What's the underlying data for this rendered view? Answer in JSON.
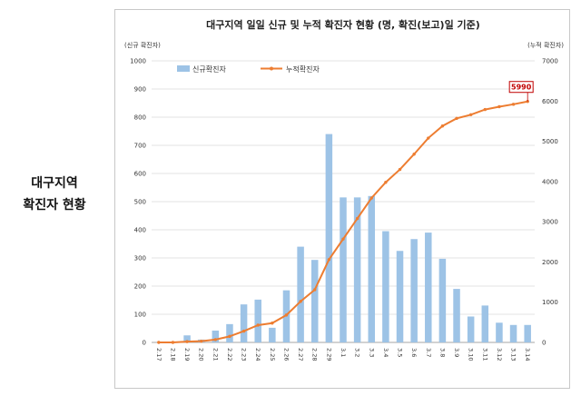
{
  "side_title": [
    "대구지역",
    "확진자 현황"
  ],
  "chart_data": {
    "type": "bar+line",
    "title": "대구지역 일일 신규 및 누적 확진자 현황 (명, 확진(보고)일 기준)",
    "y_left_unit": "(신규 확진자)",
    "y_right_unit": "(누적 확진자)",
    "y_left_lim": [
      0,
      1000
    ],
    "y_left_ticks": [
      0,
      100,
      200,
      300,
      400,
      500,
      600,
      700,
      800,
      900,
      1000
    ],
    "y_right_lim": [
      0,
      7000
    ],
    "y_right_ticks": [
      0,
      1000,
      2000,
      3000,
      4000,
      5000,
      6000,
      7000
    ],
    "legend_position": "top-left",
    "categories": [
      "2.17",
      "2.18",
      "2.19",
      "2.20",
      "2.21",
      "2.22",
      "2.23",
      "2.24",
      "2.25",
      "2.26",
      "2.27",
      "2.28",
      "2.29",
      "3.1",
      "3.2",
      "3.3",
      "3.4",
      "3.5",
      "3.6",
      "3.7",
      "3.8",
      "3.9",
      "3.10",
      "3.11",
      "3.12",
      "3.13",
      "3.14"
    ],
    "series": [
      {
        "name": "신규확진자",
        "type": "bar",
        "axis": "left",
        "color": "#9dc3e6",
        "values": [
          0,
          0,
          25,
          10,
          42,
          65,
          135,
          152,
          52,
          185,
          340,
          293,
          740,
          515,
          515,
          520,
          395,
          325,
          367,
          390,
          297,
          190,
          92,
          131,
          70,
          62,
          62
        ]
      },
      {
        "name": "누적확진자",
        "type": "line",
        "axis": "right",
        "color": "#ed7d31",
        "values": [
          0,
          0,
          20,
          30,
          70,
          150,
          280,
          430,
          480,
          680,
          1020,
          1310,
          2060,
          2570,
          3080,
          3590,
          3980,
          4300,
          4680,
          5080,
          5380,
          5570,
          5660,
          5790,
          5860,
          5920,
          5990
        ]
      }
    ],
    "annotation": {
      "text": "5990",
      "color": "#c00000"
    }
  }
}
